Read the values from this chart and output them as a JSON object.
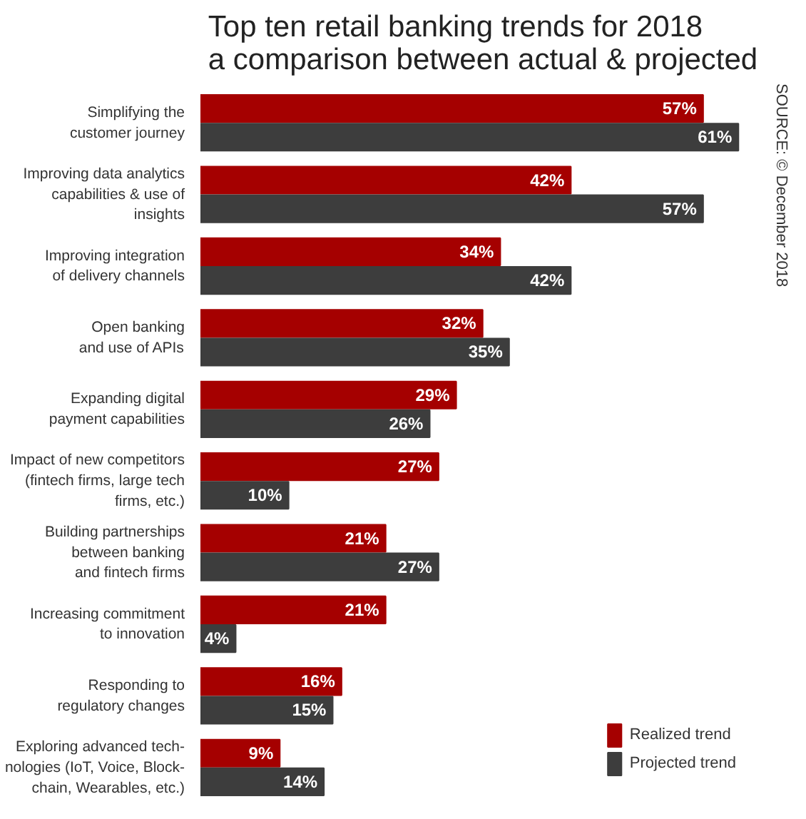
{
  "chart_data": {
    "type": "bar",
    "orientation": "horizontal",
    "title": "Top ten retail banking trends for 2018\na comparison between actual & projected",
    "categories": [
      "Simplifying the\ncustomer journey",
      "Improving data analytics\ncapabilities & use of\ninsights",
      "Improving integration\nof delivery channels",
      "Open banking\nand use of APIs",
      "Expanding digital\npayment capabilities",
      "Impact of new competitors\n(fintech firms, large tech\nfirms, etc.)",
      "Building partnerships\nbetween banking\nand fintech firms",
      "Increasing commitment\nto innovation",
      "Responding to\nregulatory changes",
      "Exploring advanced tech-\nnologies (IoT, Voice, Block-\nchain, Wearables, etc.)"
    ],
    "series": [
      {
        "name": "Realized trend",
        "color": "#a50000",
        "values": [
          57,
          42,
          34,
          32,
          29,
          27,
          21,
          21,
          16,
          9
        ],
        "value_labels": [
          "57%",
          "42%",
          "34%",
          "32%",
          "29%",
          "27%",
          "21%",
          "21%",
          "16%",
          "9%"
        ]
      },
      {
        "name": "Projected trend",
        "color": "#3d3d3d",
        "values": [
          61,
          57,
          42,
          35,
          26,
          10,
          27,
          4,
          15,
          14
        ],
        "value_labels": [
          "61%",
          "57%",
          "42%",
          "35%",
          "26%",
          "10%",
          "27%",
          "4%",
          "15%",
          "14%"
        ]
      }
    ],
    "legend": "bottom right",
    "grid": false,
    "annotations": [
      "SOURCE: © December 2018"
    ]
  }
}
